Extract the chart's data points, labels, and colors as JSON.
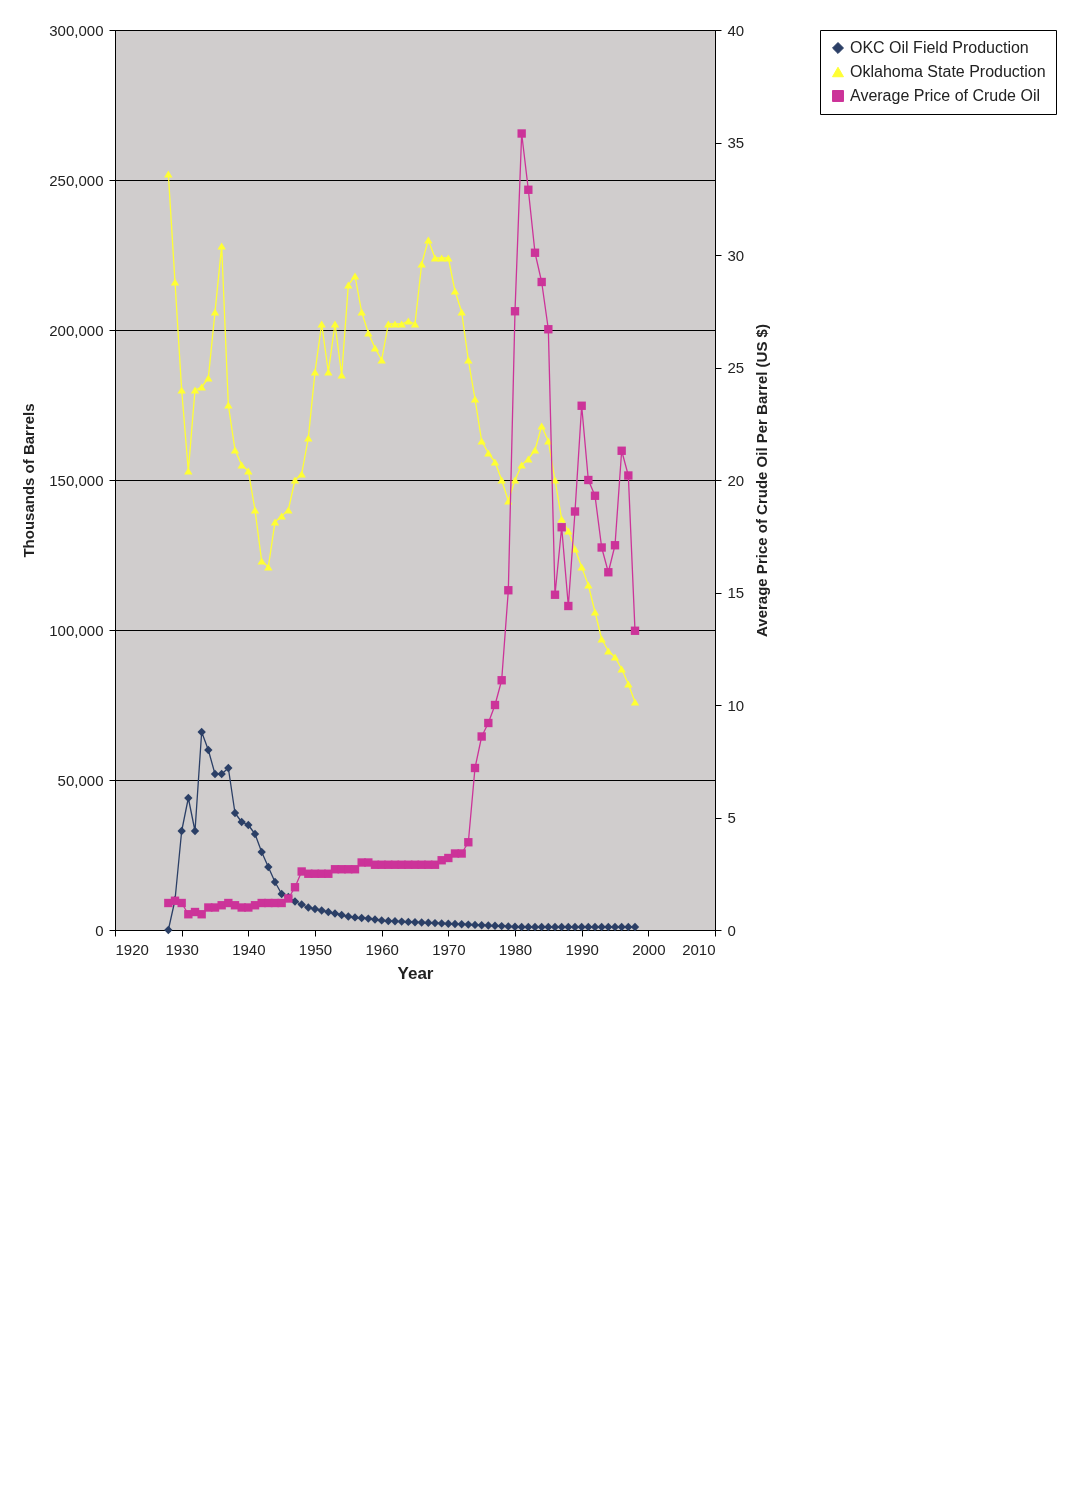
{
  "chart_data": {
    "type": "line",
    "xlabel": "Year",
    "ylabel": "Thousands of Barrels",
    "y2label": "Average Price of Crude Oil Per Barrel (US $)",
    "x": [
      1928,
      1929,
      1930,
      1931,
      1932,
      1933,
      1934,
      1935,
      1936,
      1937,
      1938,
      1939,
      1940,
      1941,
      1942,
      1943,
      1944,
      1945,
      1946,
      1947,
      1948,
      1949,
      1950,
      1951,
      1952,
      1953,
      1954,
      1955,
      1956,
      1957,
      1958,
      1959,
      1960,
      1961,
      1962,
      1963,
      1964,
      1965,
      1966,
      1967,
      1968,
      1969,
      1970,
      1971,
      1972,
      1973,
      1974,
      1975,
      1976,
      1977,
      1978,
      1979,
      1980,
      1981,
      1982,
      1983,
      1984,
      1985,
      1986,
      1987,
      1988,
      1989,
      1990,
      1991,
      1992,
      1993,
      1994,
      1995,
      1996,
      1997,
      1998
    ],
    "series": [
      {
        "name": "OKC Oil Field Production",
        "color": "#2b3f66",
        "marker": "diamond",
        "values": [
          0,
          10000,
          33000,
          44000,
          33000,
          66000,
          60000,
          52000,
          52000,
          54000,
          39000,
          36000,
          35000,
          32000,
          26000,
          21000,
          16000,
          12000,
          11000,
          9500,
          8500,
          7500,
          7000,
          6500,
          6000,
          5500,
          5000,
          4500,
          4200,
          4000,
          3800,
          3500,
          3200,
          3000,
          2900,
          2800,
          2700,
          2600,
          2500,
          2400,
          2300,
          2200,
          2100,
          2000,
          1900,
          1800,
          1700,
          1600,
          1500,
          1400,
          1300,
          1200,
          1100,
          1000,
          1000,
          1000,
          1000,
          1000,
          1000,
          1000,
          1000,
          1000,
          1000,
          1000,
          1000,
          1000,
          1000,
          1000,
          1000,
          1000,
          1000
        ]
      },
      {
        "name": "Oklahoma State Production",
        "color": "#ffff33",
        "marker": "triangle",
        "values": [
          252000,
          216000,
          180000,
          153000,
          180000,
          181000,
          184000,
          206000,
          228000,
          175000,
          160000,
          155000,
          153000,
          140000,
          123000,
          121000,
          136000,
          138000,
          140000,
          150000,
          152000,
          164000,
          186000,
          202000,
          186000,
          202000,
          185000,
          215000,
          218000,
          206000,
          199000,
          194000,
          190000,
          202000,
          202000,
          202000,
          203000,
          202000,
          222000,
          230000,
          224000,
          224000,
          224000,
          213000,
          206000,
          190000,
          177000,
          163000,
          159000,
          156000,
          150000,
          143000,
          150000,
          155000,
          157000,
          160000,
          168000,
          163000,
          150000,
          137000,
          133000,
          127000,
          121000,
          115000,
          106000,
          97000,
          93000,
          91000,
          87000,
          82000,
          76000
        ]
      },
      {
        "name": "Average Price of Crude Oil",
        "color": "#cc3399",
        "marker": "square",
        "axis": "y2",
        "values": [
          1.2,
          1.3,
          1.2,
          0.7,
          0.8,
          0.7,
          1.0,
          1.0,
          1.1,
          1.2,
          1.1,
          1.0,
          1.0,
          1.1,
          1.2,
          1.2,
          1.2,
          1.2,
          1.4,
          1.9,
          2.6,
          2.5,
          2.5,
          2.5,
          2.5,
          2.7,
          2.7,
          2.7,
          2.7,
          3.0,
          3.0,
          2.9,
          2.9,
          2.9,
          2.9,
          2.9,
          2.9,
          2.9,
          2.9,
          2.9,
          2.9,
          3.1,
          3.2,
          3.4,
          3.4,
          3.9,
          7.2,
          8.6,
          9.2,
          10.0,
          11.1,
          15.1,
          27.5,
          35.4,
          32.9,
          30.1,
          28.8,
          26.7,
          14.9,
          17.9,
          14.4,
          18.6,
          23.3,
          20.0,
          19.3,
          17.0,
          15.9,
          17.1,
          21.3,
          20.2,
          13.3
        ]
      }
    ],
    "xlim": [
      1920,
      2010
    ],
    "xticks": [
      1920,
      1930,
      1940,
      1950,
      1960,
      1970,
      1980,
      1990,
      2000,
      2010
    ],
    "ylim": [
      0,
      300000
    ],
    "yticks": [
      0,
      {
        "value": 50000,
        "label": "50,000"
      },
      {
        "value": 100000,
        "label": "100,000"
      },
      {
        "value": 150000,
        "label": "150,000"
      },
      {
        "value": 200000,
        "label": "200,000"
      },
      {
        "value": 250000,
        "label": "250,000"
      },
      {
        "value": 300000,
        "label": "300,000"
      }
    ],
    "y2lim": [
      0,
      40
    ],
    "y2ticks": [
      0,
      5,
      10,
      15,
      20,
      25,
      30,
      35,
      40
    ],
    "grid": "y",
    "legend": "right",
    "line_style": "solid"
  }
}
